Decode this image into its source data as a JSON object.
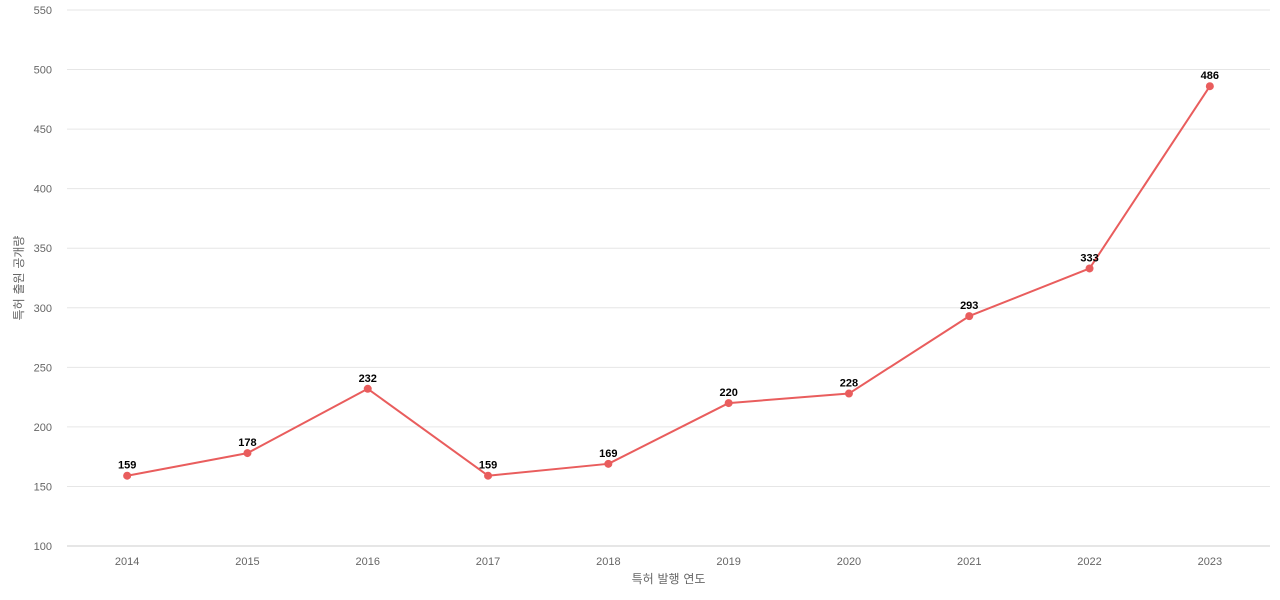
{
  "chart_data": {
    "type": "line",
    "title": "",
    "xlabel": "특허 발행 연도",
    "ylabel": "특허 출원 공개량",
    "categories": [
      "2014",
      "2015",
      "2016",
      "2017",
      "2018",
      "2019",
      "2020",
      "2021",
      "2022",
      "2023"
    ],
    "series": [
      {
        "values": [
          159,
          178,
          232,
          159,
          169,
          220,
          228,
          293,
          333,
          486
        ],
        "color": "#e95d5d"
      }
    ],
    "ylim": [
      100,
      550
    ],
    "yticks": [
      100,
      150,
      200,
      250,
      300,
      350,
      400,
      450,
      500,
      550
    ],
    "grid": true,
    "data_labels": true,
    "legend": "none"
  }
}
